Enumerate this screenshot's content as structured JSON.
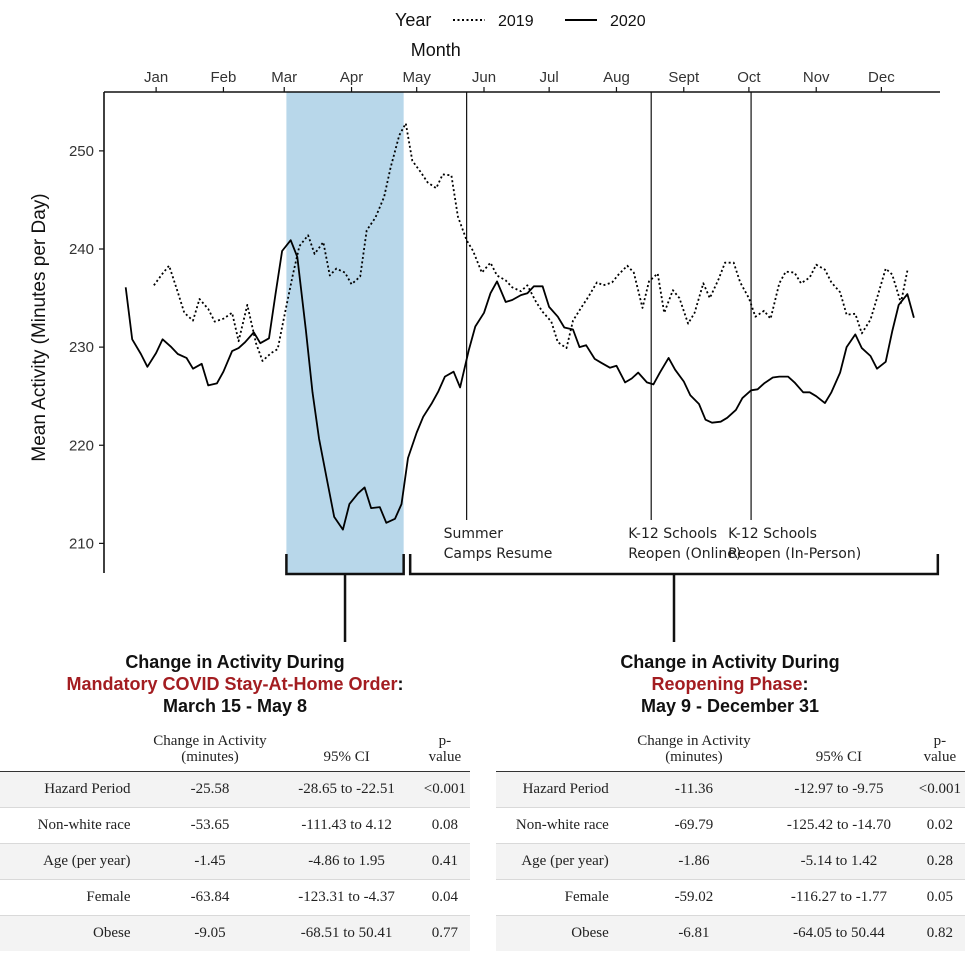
{
  "chart_data": {
    "type": "line",
    "legend": {
      "title": "Year",
      "position": "top",
      "entries": [
        {
          "label": "2019",
          "style": "dotted"
        },
        {
          "label": "2020",
          "style": "solid"
        }
      ]
    },
    "xlabel_top": "Month",
    "ylabel": "Mean Activity (Minutes per Day)",
    "x_ticks": [
      "Jan",
      "Feb",
      "Mar",
      "Apr",
      "May",
      "Jun",
      "Jul",
      "Aug",
      "Sept",
      "Oct",
      "Nov",
      "Dec"
    ],
    "y_ticks": [
      210,
      220,
      230,
      240,
      250
    ],
    "ylim": [
      208,
      256
    ],
    "xlim_day_of_year": [
      -10,
      375
    ],
    "x_units": "day of year",
    "shaded_period": {
      "start": 74,
      "end": 128,
      "color": "#b8d7ea"
    },
    "events": [
      {
        "day": 157,
        "label_lines": [
          "Summer",
          "Camps Resume"
        ]
      },
      {
        "day": 242,
        "label_lines": [
          "K-12 Schools",
          "Reopen (Online)"
        ]
      },
      {
        "day": 288,
        "label_lines": [
          "K-12 Schools",
          "Reopen (In-Person)"
        ]
      }
    ],
    "brackets": [
      {
        "start": 74,
        "end": 128
      },
      {
        "start": 131,
        "end": 374
      }
    ],
    "series": [
      {
        "name": "2019",
        "style": "dotted",
        "x": [
          13,
          17,
          20,
          24,
          27,
          31,
          34,
          38,
          41,
          45,
          49,
          52,
          56,
          60,
          63,
          67,
          70,
          73,
          77,
          80,
          84,
          87,
          91,
          94,
          97,
          101,
          104,
          108,
          111,
          115,
          119,
          122,
          126,
          129,
          132,
          136,
          139,
          143,
          146,
          150,
          153,
          157,
          160,
          164,
          168,
          171,
          175,
          178,
          182,
          185,
          189,
          192,
          196,
          199,
          203,
          206,
          210,
          213,
          217,
          220,
          224,
          227,
          231,
          234,
          238,
          241,
          245,
          248,
          252,
          255,
          259,
          262,
          266,
          269,
          273,
          276,
          280,
          283,
          287,
          290,
          294,
          297,
          301,
          304,
          308,
          311,
          315,
          318,
          322,
          325,
          329,
          332,
          336,
          339,
          343,
          346,
          350,
          353,
          357,
          360
        ],
        "y": [
          236.3,
          237.5,
          238.3,
          235.6,
          233.5,
          232.7,
          234.9,
          233.9,
          232.6,
          232.9,
          233.5,
          230.6,
          234.3,
          230.4,
          228.6,
          229.4,
          229.8,
          233.1,
          237.4,
          240.3,
          241.4,
          239.5,
          240.7,
          237.3,
          238.0,
          237.6,
          236.4,
          237.2,
          241.9,
          243.2,
          245.3,
          248.3,
          251.6,
          252.8,
          249.0,
          247.8,
          246.8,
          246.2,
          247.6,
          247.5,
          243.3,
          240.9,
          239.8,
          237.6,
          238.6,
          237.3,
          236.8,
          236.1,
          235.7,
          236.3,
          234.6,
          233.6,
          232.6,
          230.5,
          229.9,
          232.7,
          234.1,
          235.1,
          236.6,
          236.3,
          236.6,
          237.4,
          238.3,
          237.6,
          234.0,
          236.7,
          237.5,
          233.5,
          235.8,
          235.0,
          232.4,
          233.5,
          236.5,
          235.0,
          236.9,
          238.6,
          238.6,
          236.6,
          235.0,
          233.1,
          233.7,
          232.9,
          236.5,
          237.7,
          237.6,
          236.5,
          237.1,
          238.4,
          237.9,
          236.6,
          235.6,
          233.3,
          233.4,
          231.4,
          232.8,
          235.0,
          238.0,
          237.4,
          234.5,
          237.8
        ]
      },
      {
        "name": "2020",
        "style": "solid",
        "x": [
          0,
          3,
          7,
          10,
          14,
          17,
          21,
          24,
          28,
          31,
          35,
          38,
          42,
          45,
          49,
          52,
          55,
          59,
          62,
          66,
          69,
          72,
          76,
          79,
          83,
          86,
          89,
          93,
          96,
          100,
          103,
          107,
          110,
          113,
          117,
          120,
          124,
          127,
          130,
          134,
          137,
          141,
          144,
          147,
          151,
          154,
          158,
          161,
          165,
          168,
          171,
          175,
          178,
          182,
          185,
          188,
          192,
          195,
          199,
          202,
          206,
          209,
          212,
          216,
          219,
          223,
          226,
          230,
          233,
          236,
          240,
          243,
          246,
          250,
          253,
          257,
          260,
          264,
          267,
          270,
          274,
          277,
          281,
          284,
          288,
          291,
          294,
          298,
          301,
          305,
          308,
          312,
          315,
          318,
          322,
          325,
          329,
          332,
          336,
          339,
          343,
          346,
          350,
          353,
          356,
          360,
          363
        ],
        "y": [
          236.1,
          230.8,
          229.3,
          228.0,
          229.4,
          230.8,
          230.0,
          229.3,
          228.9,
          227.8,
          228.3,
          226.1,
          226.3,
          227.5,
          229.6,
          229.9,
          230.5,
          231.5,
          230.4,
          230.9,
          235.4,
          239.8,
          240.9,
          239.2,
          231.7,
          225.4,
          220.7,
          216.1,
          212.7,
          211.4,
          214.0,
          215.1,
          215.7,
          213.6,
          213.7,
          212.1,
          212.5,
          214.0,
          218.7,
          221.3,
          222.9,
          224.3,
          225.5,
          227.0,
          227.5,
          225.9,
          229.7,
          232.1,
          233.5,
          235.5,
          236.7,
          234.6,
          234.8,
          235.3,
          235.5,
          236.2,
          236.2,
          234.1,
          233.1,
          232.0,
          231.8,
          230.0,
          230.2,
          228.8,
          228.4,
          227.9,
          228.1,
          226.4,
          226.8,
          227.4,
          226.4,
          226.2,
          227.4,
          228.9,
          227.7,
          226.5,
          225.1,
          224.2,
          222.6,
          222.3,
          222.4,
          222.8,
          223.6,
          224.8,
          225.6,
          225.7,
          226.3,
          226.9,
          227.0,
          227.0,
          226.4,
          225.4,
          225.4,
          225.0,
          224.3,
          225.4,
          227.4,
          230.0,
          231.3,
          229.9,
          229.1,
          227.8,
          228.5,
          231.6,
          234.3,
          235.4,
          233.0
        ]
      }
    ]
  },
  "panels": [
    {
      "title_line1": "Change in Activity During",
      "title_red": "Mandatory COVID Stay-At-Home Order",
      "title_colon": ":",
      "title_line3": "March 15 - May 8",
      "headers": {
        "c0": "",
        "c1": "Change in Activity (minutes)",
        "c2": "95% CI",
        "c3": "p-value"
      },
      "rows": [
        {
          "label": "Hazard Period",
          "change": "-25.58",
          "ci": "-28.65 to -22.51",
          "p": "<0.001"
        },
        {
          "label": "Non-white race",
          "change": "-53.65",
          "ci": "-111.43 to 4.12",
          "p": "0.08"
        },
        {
          "label": "Age (per year)",
          "change": "-1.45",
          "ci": "-4.86 to 1.95",
          "p": "0.41"
        },
        {
          "label": "Female",
          "change": "-63.84",
          "ci": "-123.31 to -4.37",
          "p": "0.04"
        },
        {
          "label": "Obese",
          "change": "-9.05",
          "ci": "-68.51 to 50.41",
          "p": "0.77"
        }
      ]
    },
    {
      "title_line1": "Change in Activity During",
      "title_red": "Reopening Phase",
      "title_colon": ":",
      "title_line3": "May 9 - December 31",
      "headers": {
        "c0": "",
        "c1": "Change in Activity (minutes)",
        "c2": "95% CI",
        "c3": "p-value"
      },
      "rows": [
        {
          "label": "Hazard Period",
          "change": "-11.36",
          "ci": "-12.97 to -9.75",
          "p": "<0.001"
        },
        {
          "label": "Non-white race",
          "change": "-69.79",
          "ci": "-125.42 to -14.70",
          "p": "0.02"
        },
        {
          "label": "Age (per year)",
          "change": "-1.86",
          "ci": "-5.14 to 1.42",
          "p": "0.28"
        },
        {
          "label": "Female",
          "change": "-59.02",
          "ci": "-116.27 to -1.77",
          "p": "0.05"
        },
        {
          "label": "Obese",
          "change": "-6.81",
          "ci": "-64.05 to 50.44",
          "p": "0.82"
        }
      ]
    }
  ]
}
